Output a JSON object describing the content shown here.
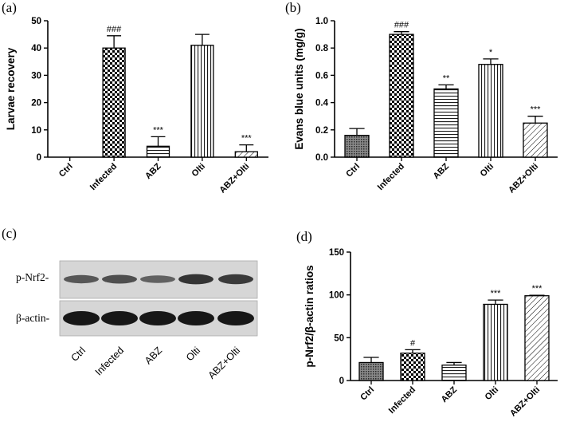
{
  "panels": [
    {
      "label": "(a)"
    },
    {
      "label": "(b)"
    },
    {
      "label": "(c)"
    },
    {
      "label": "(d)"
    }
  ],
  "western_blot": {
    "row_labels": [
      "p-Nrf2-",
      "β-actin-"
    ],
    "lanes": [
      "Ctrl",
      "Infected",
      "ABZ",
      "Olti",
      "ABZ+Olti"
    ],
    "band_intensity": {
      "p-Nrf2": [
        0.55,
        0.62,
        0.45,
        0.85,
        0.8
      ],
      "beta-actin": [
        1.0,
        1.0,
        1.0,
        1.0,
        1.0
      ]
    }
  },
  "chart_data": [
    {
      "type": "bar",
      "panel": "(a)",
      "ylabel": "Larvae recovery",
      "categories": [
        "Ctrl",
        "Infected",
        "ABZ",
        "Olti",
        "ABZ+Olti"
      ],
      "values": [
        0,
        40,
        4,
        41,
        2
      ],
      "errors": [
        0,
        4.5,
        3.5,
        4,
        2.5
      ],
      "annotations": [
        "",
        "###",
        "***",
        "",
        "***"
      ],
      "patterns": [
        "none",
        "checker",
        "hlines",
        "vlines",
        "diag"
      ],
      "ylim": [
        0,
        50
      ],
      "yticks": [
        "0",
        "10",
        "20",
        "30",
        "40",
        "50"
      ],
      "ytick_values": [
        0,
        10,
        20,
        30,
        40,
        50
      ]
    },
    {
      "type": "bar",
      "panel": "(b)",
      "ylabel": "Evans blue units (mg/g)",
      "categories": [
        "Ctrl",
        "Infected",
        "ABZ",
        "Olti",
        "ABZ+Olti"
      ],
      "values": [
        0.16,
        0.9,
        0.5,
        0.68,
        0.25
      ],
      "errors": [
        0.05,
        0.02,
        0.03,
        0.04,
        0.05
      ],
      "annotations": [
        "",
        "###",
        "**",
        "*",
        "***"
      ],
      "patterns": [
        "dense",
        "checker",
        "hlines",
        "vlines",
        "diag"
      ],
      "ylim": [
        0,
        1.0
      ],
      "yticks": [
        "0.0",
        "0.2",
        "0.4",
        "0.6",
        "0.8",
        "1.0"
      ],
      "ytick_values": [
        0,
        0.2,
        0.4,
        0.6,
        0.8,
        1.0
      ]
    },
    {
      "type": "bar",
      "panel": "(d)",
      "ylabel": "p-Nrf2/β-actin ratios",
      "categories": [
        "Ctrl",
        "Infected",
        "ABZ",
        "Olti",
        "ABZ+Olti"
      ],
      "values": [
        21,
        32,
        18,
        89,
        99
      ],
      "errors": [
        6,
        4,
        3,
        5,
        0.5
      ],
      "annotations": [
        "",
        "#",
        "",
        "***",
        "***"
      ],
      "patterns": [
        "dense",
        "checker",
        "hlines",
        "vlines",
        "diag"
      ],
      "ylim": [
        0,
        150
      ],
      "yticks": [
        "0",
        "50",
        "100",
        "150"
      ],
      "ytick_values": [
        0,
        50,
        100,
        150
      ]
    }
  ]
}
